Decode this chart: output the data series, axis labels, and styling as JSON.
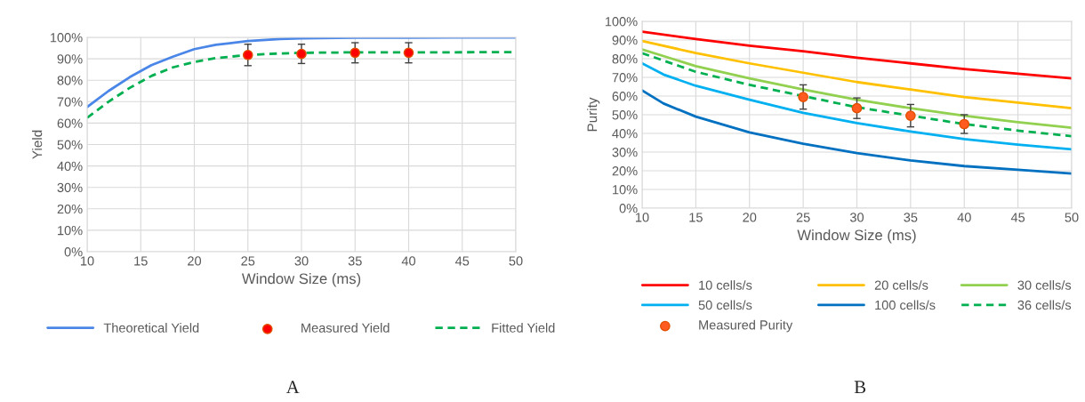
{
  "chart_data": [
    {
      "type": "line",
      "xlabel": "Window Size (ms)",
      "ylabel": "Yield",
      "xlim": [
        10,
        50
      ],
      "xticks": [
        10,
        15,
        20,
        25,
        30,
        35,
        40,
        45,
        50
      ],
      "ylim": [
        0,
        100
      ],
      "yticks": [
        {
          "value": 0,
          "label": "0%"
        },
        {
          "value": 10,
          "label": "10%"
        },
        {
          "value": 20,
          "label": "20%"
        },
        {
          "value": 30,
          "label": "30%"
        },
        {
          "value": 40,
          "label": "40%"
        },
        {
          "value": 50,
          "label": "50%"
        },
        {
          "value": 60,
          "label": "60%"
        },
        {
          "value": 70,
          "label": "70%"
        },
        {
          "value": 80,
          "label": "80%"
        },
        {
          "value": 90,
          "label": "90%"
        },
        {
          "value": 100,
          "label": "100%"
        }
      ],
      "grid": true,
      "legend": "bottom",
      "annotations": [
        "A"
      ],
      "series": [
        {
          "name": "Theoretical Yield",
          "type": "line",
          "line_style": "solid",
          "color": "#4a86e8",
          "x": [
            10,
            12,
            14,
            16,
            18,
            20,
            22,
            25,
            28,
            30,
            35,
            40,
            50
          ],
          "values": [
            67.5,
            75,
            81.5,
            87,
            91,
            94.5,
            96.5,
            98.3,
            99.2,
            99.5,
            99.8,
            99.9,
            100
          ]
        },
        {
          "name": "Measured Yield",
          "type": "scatter",
          "marker": "circle",
          "color": "#ff0000",
          "x": [
            25,
            30,
            35,
            40
          ],
          "values": [
            91.8,
            92.3,
            92.8,
            92.8
          ],
          "errors": [
            5,
            4.5,
            4.7,
            4.7
          ]
        },
        {
          "name": "Fitted Yield",
          "type": "line",
          "line_style": "dashed",
          "color": "#00b050",
          "x": [
            10,
            12,
            14,
            16,
            18,
            20,
            22,
            25,
            28,
            30,
            35,
            40,
            50
          ],
          "values": [
            62.5,
            70,
            76.5,
            82,
            86,
            88.5,
            90.3,
            91.8,
            92.5,
            92.8,
            93,
            93,
            93.1
          ]
        }
      ]
    },
    {
      "type": "line",
      "xlabel": "Window Size (ms)",
      "ylabel": "Purity",
      "xlim": [
        10,
        50
      ],
      "xticks": [
        10,
        15,
        20,
        25,
        30,
        35,
        40,
        45,
        50
      ],
      "ylim": [
        0,
        100
      ],
      "yticks": [
        {
          "value": 0,
          "label": "0%"
        },
        {
          "value": 10,
          "label": "10%"
        },
        {
          "value": 20,
          "label": "20%"
        },
        {
          "value": 30,
          "label": "30%"
        },
        {
          "value": 40,
          "label": "40%"
        },
        {
          "value": 50,
          "label": "50%"
        },
        {
          "value": 60,
          "label": "60%"
        },
        {
          "value": 70,
          "label": "70%"
        },
        {
          "value": 80,
          "label": "80%"
        },
        {
          "value": 90,
          "label": "90%"
        },
        {
          "value": 100,
          "label": "100%"
        }
      ],
      "grid": true,
      "legend": "bottom",
      "annotations": [
        "B"
      ],
      "series": [
        {
          "name": "10 cells/s",
          "type": "line",
          "line_style": "solid",
          "color": "#ff0000",
          "x": [
            10,
            15,
            20,
            25,
            30,
            35,
            40,
            45,
            50
          ],
          "values": [
            94.5,
            90.5,
            87,
            84,
            80.5,
            77.5,
            74.5,
            72,
            69.5
          ]
        },
        {
          "name": "20 cells/s",
          "type": "line",
          "line_style": "solid",
          "color": "#ffc000",
          "x": [
            10,
            15,
            20,
            25,
            30,
            35,
            40,
            45,
            50
          ],
          "values": [
            89.5,
            83,
            77.5,
            72.5,
            67.5,
            63.5,
            59.5,
            56.5,
            53.5
          ]
        },
        {
          "name": "30 cells/s",
          "type": "line",
          "line_style": "solid",
          "color": "#92d050",
          "x": [
            10,
            15,
            20,
            25,
            30,
            35,
            40,
            45,
            50
          ],
          "values": [
            85,
            76,
            69.5,
            63.5,
            58,
            53.5,
            49.5,
            46,
            43
          ]
        },
        {
          "name": "50 cells/s",
          "type": "line",
          "line_style": "solid",
          "color": "#00b0f0",
          "x": [
            10,
            12,
            15,
            20,
            25,
            30,
            35,
            40,
            45,
            50
          ],
          "values": [
            77.5,
            71.5,
            65.5,
            58,
            51,
            45.5,
            41,
            37,
            34,
            31.5
          ]
        },
        {
          "name": "100 cells/s",
          "type": "line",
          "line_style": "solid",
          "color": "#0070c0",
          "x": [
            10,
            12,
            15,
            20,
            25,
            30,
            35,
            40,
            45,
            50
          ],
          "values": [
            63,
            56,
            49,
            40.5,
            34.5,
            29.5,
            25.5,
            22.5,
            20.5,
            18.5
          ]
        },
        {
          "name": "36 cells/s",
          "type": "line",
          "line_style": "dashed",
          "color": "#00b050",
          "x": [
            10,
            15,
            20,
            25,
            30,
            35,
            40,
            45,
            50
          ],
          "values": [
            83,
            73,
            66,
            60,
            54,
            49.5,
            45,
            41.5,
            38.5
          ]
        },
        {
          "name": "Measured Purity",
          "type": "scatter",
          "marker": "circle",
          "color": "#ff5a1f",
          "x": [
            25,
            30,
            35,
            40
          ],
          "values": [
            59.5,
            53.5,
            49.5,
            45
          ],
          "errors": [
            6.5,
            5.5,
            6,
            5
          ]
        }
      ]
    }
  ]
}
